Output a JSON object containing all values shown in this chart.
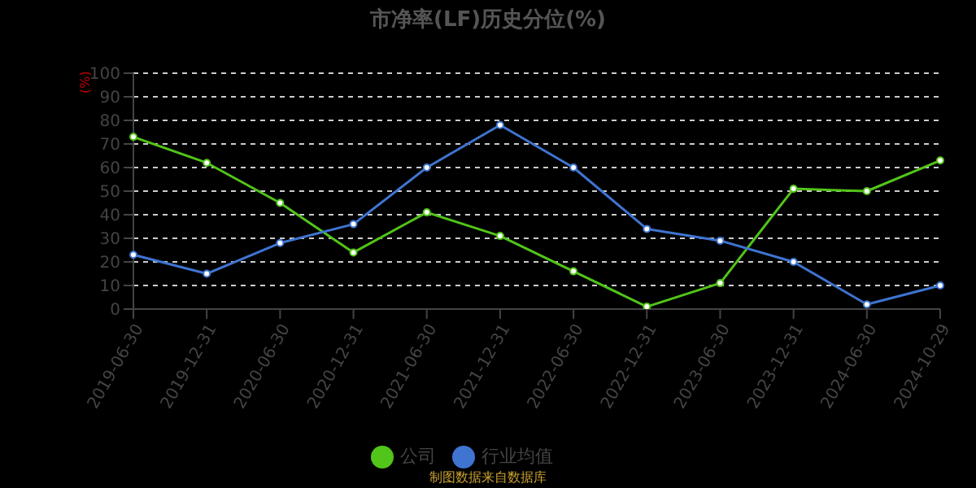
{
  "chart_data": {
    "type": "line",
    "title": "市净率(LF)历史分位(%)",
    "ylabel": "(%)",
    "categories": [
      "2019-06-30",
      "2019-12-31",
      "2020-06-30",
      "2020-12-31",
      "2021-06-30",
      "2021-12-31",
      "2022-06-30",
      "2022-12-31",
      "2023-06-30",
      "2023-12-31",
      "2024-06-30",
      "2024-10-29"
    ],
    "series": [
      {
        "name": "公司",
        "color": "#52c41a",
        "values": [
          73,
          62,
          45,
          24,
          41,
          31,
          16,
          1,
          11,
          51,
          50,
          63
        ]
      },
      {
        "name": "行业均值",
        "color": "#3f74d1",
        "values": [
          23,
          15,
          28,
          36,
          60,
          78,
          60,
          34,
          29,
          20,
          2,
          10
        ]
      }
    ],
    "ylim": [
      0,
      100
    ],
    "yticks": [
      0,
      10,
      20,
      30,
      40,
      50,
      60,
      70,
      80,
      90,
      100
    ],
    "grid": "y",
    "legend": "bottom",
    "marker": "circle",
    "annotations": [
      "制图数据来自数据库"
    ]
  }
}
